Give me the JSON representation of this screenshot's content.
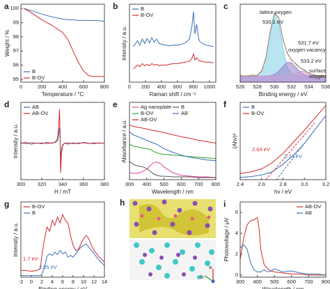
{
  "chart_data": [
    {
      "type": "line",
      "label": "a",
      "xlabel": "Temperature / °C",
      "ylabel": "Weight / %",
      "xlim": [
        0,
        800
      ],
      "ylim": [
        94.8,
        100.3
      ],
      "xticks": [
        0,
        200,
        400,
        600,
        800
      ],
      "yticks": [
        95,
        96,
        97,
        98,
        99,
        100
      ],
      "legend": "lower left",
      "x": [
        30,
        100,
        200,
        300,
        400,
        450,
        500,
        550,
        600,
        650,
        700,
        800
      ],
      "series": [
        {
          "name": "B",
          "color": "#3a6fb5",
          "values": [
            100,
            99.85,
            99.6,
            99.4,
            99.25,
            99.2,
            99.2,
            99.15,
            99.15,
            99.15,
            99.15,
            99.1
          ]
        },
        {
          "name": "B-OV",
          "color": "#d62728",
          "values": [
            100,
            99.7,
            99.2,
            98.8,
            98.3,
            97.8,
            97.0,
            96.2,
            95.6,
            95.25,
            95.2,
            95.2
          ]
        }
      ]
    },
    {
      "type": "line",
      "label": "b",
      "xlabel": "Raman shift / cm⁻¹",
      "ylabel": "Intensity / a.u.",
      "xlim": [
        0,
        1080
      ],
      "ylim": [
        0,
        10.5
      ],
      "xticks": [
        0,
        200,
        400,
        600,
        800,
        1000
      ],
      "legend": "upper left",
      "x": [
        50,
        100,
        130,
        160,
        190,
        220,
        250,
        280,
        310,
        340,
        370,
        400,
        450,
        500,
        550,
        600,
        650,
        700,
        750,
        780,
        800,
        820,
        840,
        870,
        900,
        950,
        1000,
        1050
      ],
      "series": [
        {
          "name": "B",
          "color": "#3a6fb5",
          "values": [
            4.8,
            5.6,
            5.0,
            5.8,
            5.2,
            5.9,
            5.3,
            6.0,
            5.4,
            5.8,
            5.2,
            5.1,
            5.0,
            4.9,
            5.0,
            5.0,
            5.1,
            5.3,
            5.8,
            7.5,
            9.5,
            6.5,
            7.8,
            5.6,
            5.3,
            5.0,
            4.9,
            4.8
          ]
        },
        {
          "name": "B-OV",
          "color": "#d62728",
          "values": [
            1.8,
            2.3,
            2.1,
            2.5,
            2.2,
            2.4,
            2.2,
            2.5,
            2.3,
            2.4,
            2.2,
            2.3,
            2.3,
            2.4,
            2.5,
            2.5,
            2.6,
            2.7,
            2.8,
            3.2,
            3.8,
            3.0,
            3.3,
            2.9,
            2.8,
            2.7,
            2.7,
            2.6
          ]
        }
      ]
    },
    {
      "type": "line",
      "label": "c",
      "xlabel": "Binding energy / eV",
      "xlim": [
        526,
        536
      ],
      "ylim": [
        0,
        10
      ],
      "xticks": [
        526,
        528,
        530,
        532,
        534,
        536
      ],
      "x": [
        526,
        526.5,
        527,
        527.5,
        528,
        528.5,
        529,
        529.5,
        530,
        530.5,
        531,
        531.5,
        532,
        532.5,
        533,
        533.5,
        534,
        534.5,
        535,
        535.5,
        536
      ],
      "series": [
        {
          "color": "#7fd0e8",
          "fill": true,
          "values": [
            0.8,
            0.8,
            0.8,
            0.81,
            0.89,
            1.39,
            3.13,
            6.34,
            8.72,
            7.6,
            4.3,
            1.88,
            1.0,
            0.8,
            0.8,
            0.8,
            0.8,
            0.8,
            0.8,
            0.8,
            0.8
          ]
        },
        {
          "color": "#9b7fc8",
          "fill": true,
          "values": [
            0.8,
            0.8,
            0.8,
            0.8,
            0.8,
            0.8,
            0.8,
            0.84,
            0.99,
            1.38,
            2.03,
            2.55,
            2.48,
            1.89,
            1.28,
            0.94,
            0.83,
            0.8,
            0.8,
            0.8,
            0.8
          ]
        },
        {
          "color": "#c8a0d8",
          "fill": true,
          "values": [
            0.8,
            0.8,
            0.8,
            0.8,
            0.8,
            0.8,
            0.8,
            0.8,
            0.8,
            0.8,
            0.8,
            0.86,
            1.0,
            1.21,
            1.38,
            1.36,
            1.17,
            0.96,
            0.85,
            0.8,
            0.8
          ]
        },
        {
          "color": "#f0a060",
          "values": [
            0.9,
            0.75,
            0.85,
            0.95,
            0.8,
            1.5,
            3.0,
            6.5,
            8.8,
            8.3,
            5.4,
            3.8,
            2.8,
            2.4,
            1.8,
            1.6,
            1.1,
            1.0,
            0.8,
            0.9,
            0.75
          ]
        },
        {
          "color": "#888888",
          "values": [
            0.8,
            0.8,
            0.8,
            0.81,
            0.89,
            1.39,
            3.13,
            6.38,
            8.91,
            8.18,
            5.53,
            3.69,
            2.88,
            2.3,
            1.86,
            1.5,
            1.2,
            0.96,
            0.85,
            0.8,
            0.8
          ]
        }
      ],
      "annotations": [
        {
          "text": "lattice oxygen"
        },
        {
          "text": "530.1 eV"
        },
        {
          "text": "531.7 eV"
        },
        {
          "text": "oxygen vacancy"
        },
        {
          "text": "533.2 eV"
        },
        {
          "text": "surface"
        },
        {
          "text": "oxygen"
        }
      ]
    },
    {
      "type": "line",
      "label": "d",
      "xlabel": "H / mT",
      "ylabel": "Intensity / a.u.",
      "xlim": [
        300,
        380
      ],
      "ylim": [
        -8,
        9
      ],
      "xticks": [
        300,
        320,
        340,
        360,
        380
      ],
      "legend": "upper left",
      "x": [
        300,
        305,
        310,
        315,
        320,
        325,
        330,
        333,
        335,
        336,
        337,
        337.5,
        338,
        339,
        340,
        342,
        345,
        350,
        355,
        360,
        365,
        370,
        375,
        380
      ],
      "series": [
        {
          "name": "AB",
          "color": "#3a6fb5",
          "values": [
            0.1,
            -0.1,
            0.15,
            0,
            0.1,
            -0.05,
            0.1,
            0.2,
            0.5,
            1.5,
            3.5,
            1,
            -3.5,
            -1.2,
            -0.3,
            0,
            0.1,
            -0.1,
            0.05,
            0.1,
            -0.05,
            0.1,
            0,
            0.05
          ]
        },
        {
          "name": "AB-OV",
          "color": "#d62728",
          "values": [
            0,
            0.2,
            -0.2,
            0.1,
            -0.1,
            0.2,
            0,
            0.3,
            1,
            3,
            7.5,
            2,
            -6.5,
            -2,
            -0.5,
            0.1,
            -0.2,
            0.1,
            -0.1,
            0.2,
            0,
            -0.1,
            0.1,
            0
          ]
        }
      ]
    },
    {
      "type": "line",
      "label": "e",
      "xlabel": "Wavelength / nm",
      "ylabel": "Absorbance / a.u.",
      "xlim": [
        300,
        800
      ],
      "ylim": [
        0,
        11
      ],
      "xticks": [
        300,
        400,
        500,
        600,
        700,
        800
      ],
      "legend": "upper left",
      "legend_columns": 2,
      "x": [
        300,
        320,
        340,
        360,
        380,
        400,
        420,
        440,
        460,
        480,
        500,
        550,
        600,
        650,
        700,
        750,
        800
      ],
      "series": [
        {
          "name": "Ag nanoplate",
          "color": "#e040a0",
          "values": [
            1.0,
            0.9,
            0.9,
            1.0,
            1.2,
            1.5,
            2.0,
            2.4,
            2.5,
            2.3,
            1.8,
            1.0,
            0.6,
            0.5,
            0.4,
            0.4,
            0.3
          ]
        },
        {
          "name": "B",
          "color": "#555555",
          "values": [
            2.6,
            2.2,
            2.0,
            1.9,
            1.8,
            1.6,
            1.2,
            0.8,
            0.6,
            0.5,
            0.5,
            0.4,
            0.4,
            0.4,
            0.3,
            0.3,
            0.3
          ]
        },
        {
          "name": "B-OV",
          "color": "#2ca02c",
          "values": [
            5.0,
            4.8,
            4.7,
            4.6,
            4.5,
            4.4,
            4.3,
            4.0,
            3.8,
            3.7,
            3.6,
            3.5,
            3.4,
            3.3,
            3.2,
            3.1,
            3.0
          ]
        },
        {
          "name": "AB",
          "color": "#3a6fb5",
          "values": [
            6.8,
            6.4,
            6.2,
            6.0,
            5.8,
            5.6,
            5.4,
            5.2,
            5.0,
            4.7,
            4.4,
            3.9,
            3.5,
            3.2,
            3.0,
            2.8,
            2.7
          ]
        },
        {
          "name": "AB-OV",
          "color": "#d62728",
          "values": [
            7.8,
            7.6,
            7.5,
            7.4,
            7.3,
            7.2,
            7.1,
            7.0,
            6.9,
            6.8,
            6.7,
            6.4,
            6.1,
            5.9,
            5.6,
            5.4,
            5.2
          ]
        }
      ]
    },
    {
      "type": "line",
      "label": "f",
      "xlabel": "hν / eV",
      "ylabel": "(Ahν)²",
      "xlim": [
        2.4,
        3.2
      ],
      "ylim": [
        0,
        10
      ],
      "xticks": [
        2.4,
        2.6,
        2.8,
        {
          "value": 3,
          "label": "3.0"
        },
        3.2
      ],
      "legend": "upper left",
      "x": [
        2.4,
        2.5,
        2.6,
        2.7,
        2.8,
        2.9,
        3.0,
        3.1,
        3.2
      ],
      "series": [
        {
          "name": "B",
          "color": "#3a6fb5",
          "values": [
            0.3,
            0.4,
            0.6,
            1.0,
            2.0,
            3.2,
            4.7,
            6.5,
            8.3
          ]
        },
        {
          "name": "B-OV",
          "color": "#d62728",
          "values": [
            0.8,
            1.0,
            1.4,
            2.2,
            3.4,
            4.9,
            6.4,
            8.0,
            9.6
          ]
        },
        {
          "color": "#d62728",
          "dashed": true,
          "x": [
            2.64,
            3.1
          ],
          "values": [
            0,
            7.4
          ]
        },
        {
          "color": "#3a6fb5",
          "dashed": true,
          "x": [
            2.74,
            3.1
          ],
          "values": [
            0,
            6.5
          ]
        }
      ],
      "annotations": [
        {
          "text": "2.64 eV",
          "color": "#d62728"
        },
        {
          "text": "2.74 eV",
          "color": "#3a6fb5"
        }
      ]
    },
    {
      "type": "line",
      "label": "g",
      "xlabel": "Binding energy / eV",
      "ylabel": "Intensity / a.u.",
      "xlim": [
        -2,
        14
      ],
      "ylim": [
        0,
        9
      ],
      "xticks": [
        -2,
        0,
        2,
        4,
        6,
        8,
        10,
        12,
        14
      ],
      "legend": "upper left",
      "x": [
        -2,
        -1,
        0,
        1,
        1.7,
        2,
        2.5,
        3,
        3.5,
        4,
        4.5,
        5,
        5.5,
        6,
        6.5,
        7,
        7.5,
        8,
        8.5,
        9,
        9.5,
        10,
        10.5,
        11,
        11.5,
        12,
        13,
        14
      ],
      "series": [
        {
          "name": "B-OV",
          "color": "#d62728",
          "values": [
            0.8,
            0.8,
            0.7,
            0.8,
            1.0,
            2.5,
            4.5,
            6.0,
            5.5,
            6.8,
            6.2,
            7.2,
            6.5,
            7.5,
            6.8,
            6.5,
            5.0,
            3.8,
            3.2,
            3.3,
            4.0,
            4.6,
            5.0,
            4.6,
            3.8,
            3.2,
            2.4,
            1.8
          ]
        },
        {
          "name": "B",
          "color": "#3a6fb5",
          "values": [
            0.2,
            0.2,
            0.2,
            0.2,
            0.2,
            0.3,
            1.2,
            2.5,
            2.8,
            2.6,
            3.0,
            2.7,
            3.2,
            2.8,
            3.0,
            2.4,
            2.6,
            2.4,
            2.8,
            3.2,
            3.6,
            3.8,
            4.0,
            3.6,
            3.2,
            2.8,
            2.0,
            1.4
          ]
        }
      ],
      "annotations": [
        {
          "text": "1.7 eV",
          "color": "#d62728"
        },
        {
          "text": "2.05 eV",
          "color": "#3a6fb5"
        }
      ]
    },
    {
      "type": "line",
      "label": "i",
      "xlabel": "Wavelength / nm",
      "ylabel": "Photovoltage / μV",
      "xlim": [
        300,
        800
      ],
      "ylim": [
        -0.2,
        7
      ],
      "xticks": [
        300,
        400,
        500,
        600,
        700,
        800
      ],
      "yticks": [
        0,
        2,
        4,
        6
      ],
      "legend": "upper right",
      "x": [
        300,
        320,
        340,
        360,
        380,
        400,
        410,
        420,
        440,
        460,
        480,
        500,
        550,
        600,
        650,
        700,
        750,
        800
      ],
      "series": [
        {
          "name": "AB-OV",
          "color": "#d62728",
          "values": [
            1.5,
            3.5,
            4.8,
            5.2,
            5.3,
            5.5,
            4.5,
            2.5,
            1.0,
            0.6,
            0.4,
            0.3,
            0.2,
            0.1,
            0.1,
            0,
            0,
            0
          ]
        },
        {
          "name": "AB",
          "color": "#3a6fb5",
          "values": [
            2.6,
            2.9,
            2.5,
            1.2,
            0.5,
            0.3,
            0.3,
            0.3,
            0.5,
            0.3,
            0.4,
            0.6,
            0.3,
            0.4,
            0.2,
            0.1,
            0.1,
            0
          ]
        }
      ]
    }
  ],
  "structure": {
    "label": "h",
    "axis_labels": [
      "a",
      "b"
    ]
  }
}
